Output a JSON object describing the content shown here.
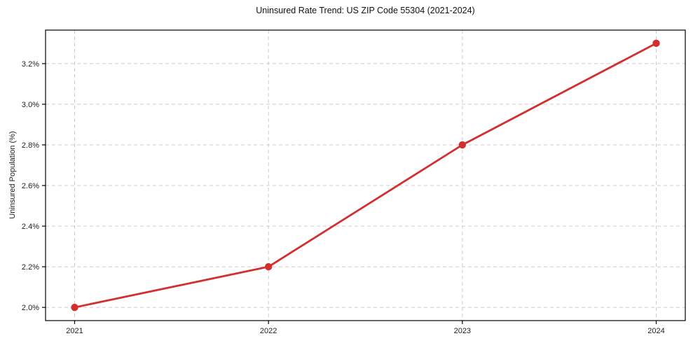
{
  "chart_data": {
    "type": "line",
    "title": "Uninsured Rate Trend: US ZIP Code 55304 (2021-2024)",
    "xlabel": "",
    "ylabel": "Uninsured Population (%)",
    "x": [
      2021,
      2022,
      2023,
      2024
    ],
    "x_tick_labels": [
      "2021",
      "2022",
      "2023",
      "2024"
    ],
    "series": [
      {
        "name": "uninsured-rate",
        "values": [
          2.0,
          2.2,
          2.8,
          3.3
        ]
      }
    ],
    "y_ticks": [
      2.0,
      2.2,
      2.4,
      2.6,
      2.8,
      3.0,
      3.2
    ],
    "y_tick_labels": [
      "2.0%",
      "2.2%",
      "2.4%",
      "2.6%",
      "2.8%",
      "3.0%",
      "3.2%"
    ],
    "xlim": [
      2020.85,
      2024.15
    ],
    "ylim": [
      1.935,
      3.365
    ],
    "grid": true,
    "legend": "none",
    "colors": {
      "line": "#d32f2f",
      "marker": "#d32f2f",
      "grid": "#cccccc",
      "axis": "#000000",
      "tick_text": "#222222",
      "background": "#ffffff"
    }
  }
}
